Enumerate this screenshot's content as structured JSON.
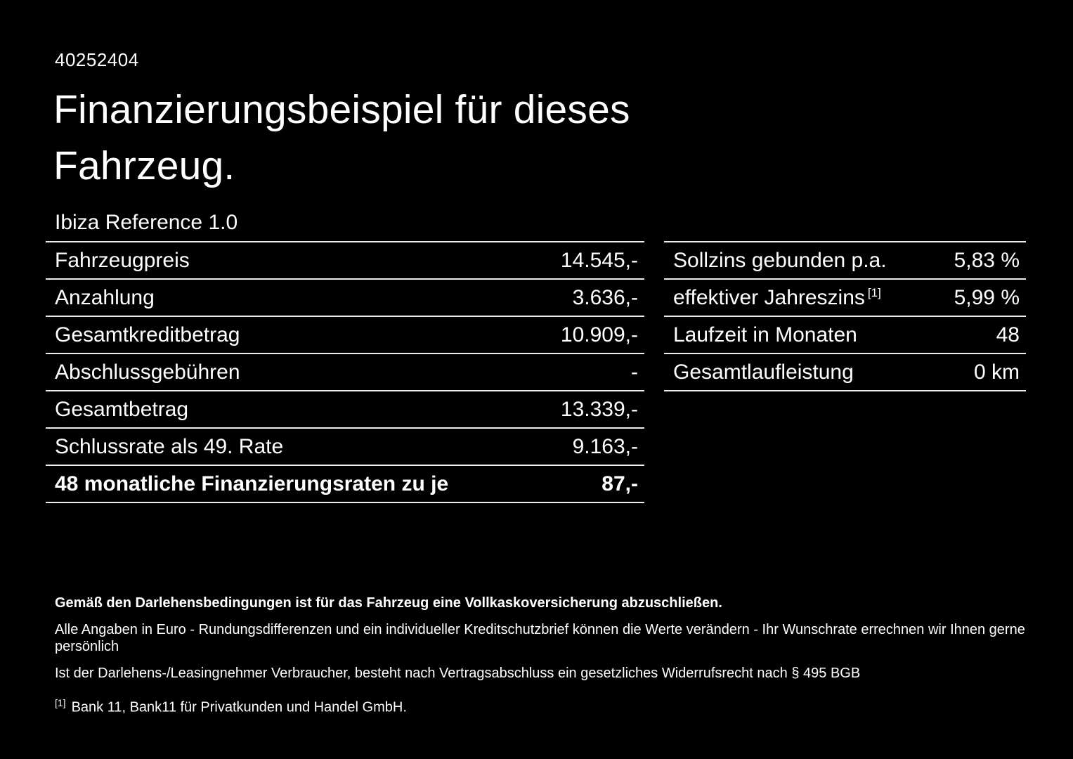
{
  "colors": {
    "background": "#000000",
    "text": "#ffffff",
    "divider": "#ededed"
  },
  "header": {
    "id_number": "40252404",
    "title_line1": "Finanzierungsbeispiel für dieses",
    "title_line2": "Fahrzeug.",
    "vehicle_name": "Ibiza Reference 1.0"
  },
  "left_table": {
    "rows": [
      {
        "label": "Fahrzeugpreis",
        "value": "14.545,-"
      },
      {
        "label": "Anzahlung",
        "value": "3.636,-"
      },
      {
        "label": "Gesamtkreditbetrag",
        "value": "10.909,-"
      },
      {
        "label": "Abschlussgebühren",
        "value": "-"
      },
      {
        "label": "Gesamtbetrag",
        "value": "13.339,-"
      },
      {
        "label": "Schlussrate als 49. Rate",
        "value": "9.163,-"
      },
      {
        "label": "48 monatliche Finanzierungsraten zu je",
        "value": "87,-"
      }
    ]
  },
  "right_table": {
    "rows": [
      {
        "label": "Sollzins gebunden p.a.",
        "sup": "",
        "value": "5,83 %"
      },
      {
        "label": "effektiver Jahreszins",
        "sup": "[1]",
        "value": "5,99 %"
      },
      {
        "label": "Laufzeit in Monaten",
        "sup": "",
        "value": "48"
      },
      {
        "label": "Gesamtlaufleistung",
        "sup": "",
        "value": "0 km"
      }
    ]
  },
  "footer": {
    "bold_note": "Gemäß den Darlehensbedingungen ist für das Fahrzeug eine Vollkaskoversicherung abzuschließen.",
    "note1": "Alle Angaben in Euro - Rundungsdifferenzen und ein individueller Kreditschutzbrief können die Werte verändern - Ihr Wunschrate errechnen wir Ihnen gerne persönlich",
    "note2": "Ist der Darlehens-/Leasingnehmer Verbraucher, besteht nach Vertragsabschluss ein gesetzliches Widerrufsrecht nach § 495 BGB",
    "footnote_marker": "[1]",
    "footnote_text": "Bank 11, Bank11 für Privatkunden und Handel GmbH."
  }
}
